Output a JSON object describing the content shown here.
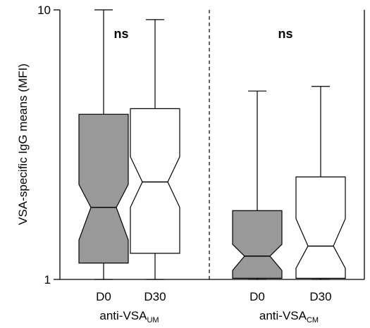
{
  "chart_data": {
    "type": "box",
    "ylabel": "VSA-specific IgG means (MFI)",
    "yscale": "log",
    "ylim": [
      1,
      10
    ],
    "yticks": [
      1,
      10
    ],
    "groups": [
      {
        "label_main": "anti-VSA",
        "label_sub": "UM",
        "significance": "ns",
        "boxes": [
          {
            "name": "D0",
            "fill": "#999999",
            "whisker_low": 1.0,
            "q1": 1.15,
            "median": 1.85,
            "q3": 4.1,
            "whisker_high": 10.0,
            "notch_low": 1.4,
            "notch_high": 2.25
          },
          {
            "name": "D30",
            "fill": "#ffffff",
            "whisker_low": 1.0,
            "q1": 1.25,
            "median": 2.3,
            "q3": 4.3,
            "whisker_high": 9.2,
            "notch_low": 1.85,
            "notch_high": 2.85
          }
        ]
      },
      {
        "label_main": "anti-VSA",
        "label_sub": "CM",
        "significance": "ns",
        "boxes": [
          {
            "name": "D0",
            "fill": "#999999",
            "whisker_low": 1.0,
            "q1": 1.01,
            "median": 1.22,
            "q3": 1.8,
            "whisker_high": 5.0,
            "notch_low": 1.08,
            "notch_high": 1.35
          },
          {
            "name": "D30",
            "fill": "#ffffff",
            "whisker_low": 1.0,
            "q1": 1.01,
            "median": 1.33,
            "q3": 2.4,
            "whisker_high": 5.2,
            "notch_low": 1.1,
            "notch_high": 1.68
          }
        ]
      }
    ]
  }
}
